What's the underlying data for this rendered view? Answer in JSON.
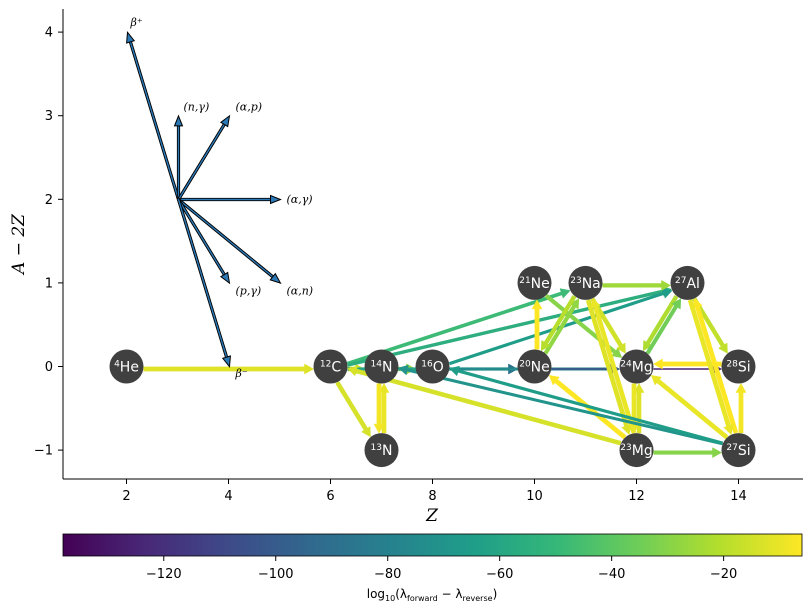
{
  "chart_data": {
    "type": "network",
    "xlabel": "Z",
    "ylabel": "A − 2Z",
    "xlim": [
      0.75,
      15.25
    ],
    "ylim": [
      -1.35,
      4.27
    ],
    "xticks": [
      2,
      4,
      6,
      8,
      10,
      12,
      14
    ],
    "yticks": [
      -1,
      0,
      1,
      2,
      3,
      4
    ],
    "nodes": [
      {
        "id": "he4",
        "mass": "4",
        "sym": "He",
        "z": 2,
        "n": 0
      },
      {
        "id": "c12",
        "mass": "12",
        "sym": "C",
        "z": 6,
        "n": 0
      },
      {
        "id": "n13",
        "mass": "13",
        "sym": "N",
        "z": 7,
        "n": -1
      },
      {
        "id": "n14",
        "mass": "14",
        "sym": "N",
        "z": 7,
        "n": 0
      },
      {
        "id": "o16",
        "mass": "16",
        "sym": "O",
        "z": 8,
        "n": 0
      },
      {
        "id": "ne20",
        "mass": "20",
        "sym": "Ne",
        "z": 10,
        "n": 0
      },
      {
        "id": "ne21",
        "mass": "21",
        "sym": "Ne",
        "z": 10,
        "n": 1
      },
      {
        "id": "na23",
        "mass": "23",
        "sym": "Na",
        "z": 11,
        "n": 1
      },
      {
        "id": "mg23",
        "mass": "23",
        "sym": "Mg",
        "z": 12,
        "n": -1
      },
      {
        "id": "mg24",
        "mass": "24",
        "sym": "Mg",
        "z": 12,
        "n": 0
      },
      {
        "id": "al27",
        "mass": "27",
        "sym": "Al",
        "z": 13,
        "n": 1
      },
      {
        "id": "si27",
        "mass": "27",
        "sym": "Si",
        "z": 14,
        "n": -1
      },
      {
        "id": "si28",
        "mass": "28",
        "sym": "Si",
        "z": 14,
        "n": 0
      }
    ],
    "edges": [
      {
        "from": "he4",
        "to": "c12",
        "value": -12
      },
      {
        "from": "c12",
        "to": "n13",
        "value": -14
      },
      {
        "from": "n13",
        "to": "n14",
        "value": -10
      },
      {
        "from": "n14",
        "to": "n13",
        "value": -8
      },
      {
        "from": "c12",
        "to": "n14",
        "value": -15
      },
      {
        "from": "c12",
        "to": "o16",
        "value": -70
      },
      {
        "from": "n14",
        "to": "o16",
        "value": -25
      },
      {
        "from": "c12",
        "to": "ne20",
        "value": -60
      },
      {
        "from": "c12",
        "to": "na23",
        "value": -48
      },
      {
        "from": "c12",
        "to": "al27",
        "value": -55
      },
      {
        "from": "o16",
        "to": "ne20",
        "value": -90
      },
      {
        "from": "o16",
        "to": "mg24",
        "value": -75
      },
      {
        "from": "o16",
        "to": "al27",
        "value": -65
      },
      {
        "from": "ne20",
        "to": "mg24",
        "value": -100
      },
      {
        "from": "ne20",
        "to": "ne21",
        "value": -5
      },
      {
        "from": "ne21",
        "to": "mg24",
        "value": -30
      },
      {
        "from": "ne20",
        "to": "na23",
        "value": -28
      },
      {
        "from": "na23",
        "to": "ne20",
        "value": -20
      },
      {
        "from": "na23",
        "to": "al27",
        "value": -25
      },
      {
        "from": "na23",
        "to": "mg24",
        "value": -15
      },
      {
        "from": "na23",
        "to": "mg23",
        "value": -12
      },
      {
        "from": "mg23",
        "to": "na23",
        "value": -10
      },
      {
        "from": "mg23",
        "to": "ne20",
        "value": -5
      },
      {
        "from": "mg23",
        "to": "mg24",
        "value": -12
      },
      {
        "from": "mg24",
        "to": "mg23",
        "value": -10
      },
      {
        "from": "mg23",
        "to": "si27",
        "value": -30
      },
      {
        "from": "mg23",
        "to": "c12",
        "value": -14
      },
      {
        "from": "al27",
        "to": "mg24",
        "value": -22
      },
      {
        "from": "al27",
        "to": "si28",
        "value": -18
      },
      {
        "from": "mg24",
        "to": "al27",
        "value": -35
      },
      {
        "from": "mg24",
        "to": "si28",
        "value": -125
      },
      {
        "from": "si28",
        "to": "mg24",
        "value": -5
      },
      {
        "from": "si27",
        "to": "al27",
        "value": -5
      },
      {
        "from": "al27",
        "to": "si27",
        "value": -10
      },
      {
        "from": "si27",
        "to": "mg24",
        "value": -10
      },
      {
        "from": "si27",
        "to": "si28",
        "value": -8
      },
      {
        "from": "si27",
        "to": "n14",
        "value": -70
      },
      {
        "from": "si27",
        "to": "o16",
        "value": -65
      }
    ],
    "legend_arrows": [
      {
        "label": "β⁺",
        "dz": -1,
        "dn": 2
      },
      {
        "label": "(n,γ)",
        "dz": 0,
        "dn": 1
      },
      {
        "label": "(α,p)",
        "dz": 1,
        "dn": 1
      },
      {
        "label": "(α,γ)",
        "dz": 2,
        "dn": 0
      },
      {
        "label": "(α,n)",
        "dz": 2,
        "dn": -1
      },
      {
        "label": "(p,γ)",
        "dz": 1,
        "dn": -1
      },
      {
        "label": "β⁻",
        "dz": 1,
        "dn": -2
      }
    ],
    "colorbar": {
      "cmap": "viridis",
      "range": [
        -138,
        -6
      ],
      "ticks": [
        -120,
        -100,
        -80,
        -60,
        -40,
        -20
      ],
      "label": "log10(λforward − λreverse)"
    }
  },
  "text": {
    "xlabel": "Z",
    "ylabel": "A − 2Z",
    "cb_log": "log",
    "cb_log_sub": "10",
    "cb_open": "(λ",
    "cb_fwd": "forward",
    "cb_minus": " − λ",
    "cb_rev": "reverse",
    "cb_close": ")"
  }
}
